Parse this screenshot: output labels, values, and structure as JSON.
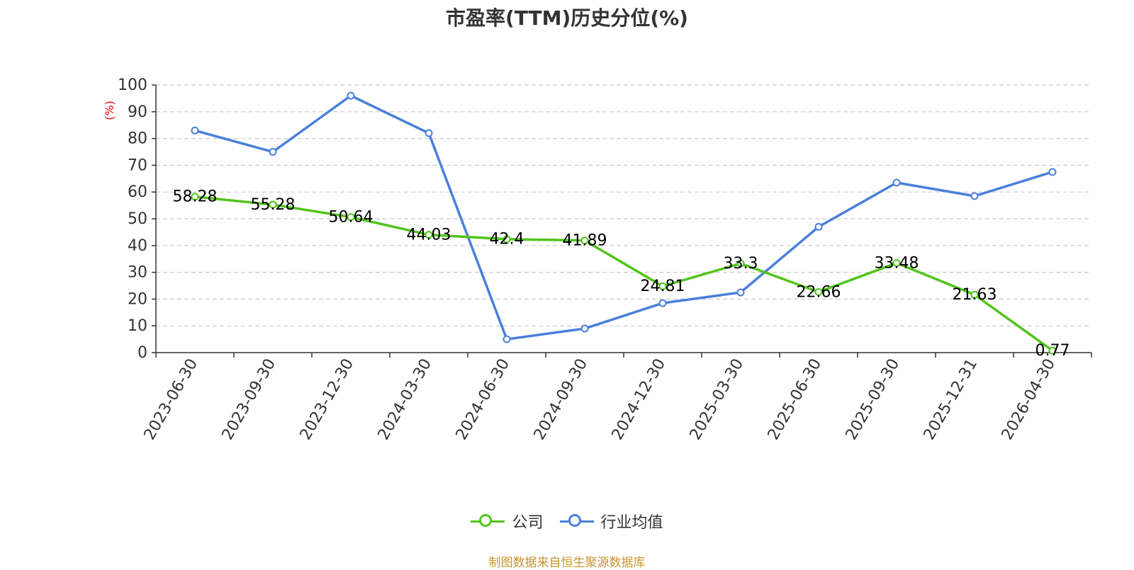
{
  "title": "市盈率(TTM)历史分位(%)",
  "source_note": "制图数据来自恒生聚源数据库",
  "colors": {
    "company": "#52c41a",
    "industry": "#4a7fdc",
    "ylabel": "#ff0000",
    "axis": "#333333",
    "grid": "#cccccc"
  },
  "chart_data": {
    "type": "line",
    "title": "市盈率(TTM)历史分位(%)",
    "ylabel": "(%)",
    "xlabel": "",
    "ylim": [
      0,
      100
    ],
    "yticks": [
      0,
      10,
      20,
      30,
      40,
      50,
      60,
      70,
      80,
      90,
      100
    ],
    "grid": true,
    "legend_position": "bottom-center",
    "categories": [
      "2023-06-30",
      "2023-09-30",
      "2023-12-30",
      "2024-03-30",
      "2024-06-30",
      "2024-09-30",
      "2024-12-30",
      "2025-03-30",
      "2025-06-30",
      "2025-09-30",
      "2025-12-31",
      "2026-04-30"
    ],
    "series": [
      {
        "name": "公司",
        "color": "#52c41a",
        "show_labels": true,
        "values": [
          58.28,
          55.28,
          50.64,
          44.03,
          42.4,
          41.89,
          24.81,
          33.3,
          22.66,
          33.48,
          21.63,
          0.77
        ]
      },
      {
        "name": "行业均值",
        "color": "#4a7fdc",
        "show_labels": false,
        "values": [
          83,
          75,
          96,
          82,
          5,
          9,
          18.5,
          22.5,
          47,
          63.5,
          58.5,
          67.5
        ]
      }
    ]
  }
}
